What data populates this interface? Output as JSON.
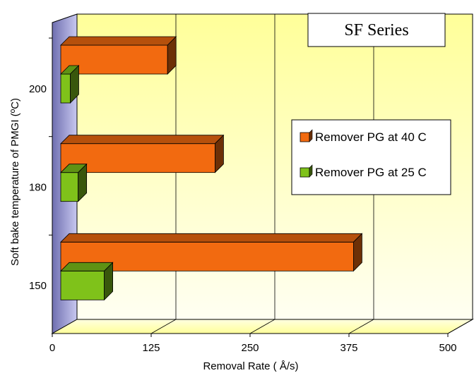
{
  "chart_data": {
    "type": "bar",
    "orientation": "horizontal",
    "three_d": true,
    "title": "SF Series",
    "xlabel": "Removal Rate ( Å/s)",
    "ylabel": "Soft bake temperature of PMGI (ºC)",
    "categories": [
      "150",
      "180",
      "200"
    ],
    "xlim": [
      0,
      500
    ],
    "xticks": [
      "0",
      "125",
      "250",
      "375",
      "500"
    ],
    "grid": true,
    "legend_position": "right",
    "series": [
      {
        "name": "Remover PG at 40 C",
        "color": "#f26a10",
        "values": [
          370,
          195,
          135
        ]
      },
      {
        "name": "Remover PG at 25 C",
        "color": "#7fc21a",
        "values": [
          55,
          22,
          12
        ]
      }
    ]
  }
}
